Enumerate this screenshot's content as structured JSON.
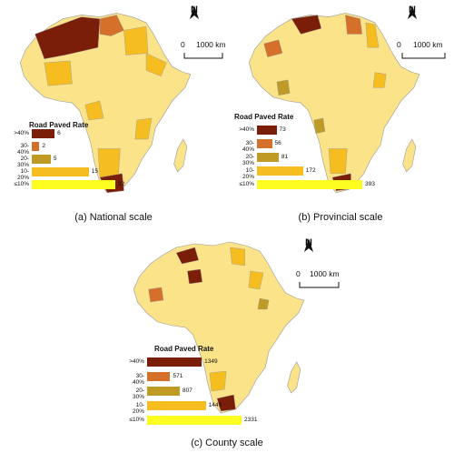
{
  "colors": {
    "c40": "#7a1e09",
    "c30": "#d4702a",
    "c20": "#bf9a25",
    "c10": "#f5bd1f",
    "c0": "#fdfd22",
    "base": "#fbe38a",
    "mid": "#f5c35a",
    "border": "#9a9a9a"
  },
  "north_symbol": "N",
  "scale_bar": {
    "zero": "0",
    "distance": "1000 km"
  },
  "panels": [
    {
      "id": "a",
      "caption": "(a) National scale",
      "legend_title": "Road Paved Rate",
      "rows": [
        {
          "label": ">40%",
          "count": "6"
        },
        {
          "label": "30-40%",
          "count": "2"
        },
        {
          "label": "20-30%",
          "count": "5"
        },
        {
          "label": "10-20%",
          "count": "15"
        },
        {
          "label": "≤10%",
          "count": "22"
        }
      ]
    },
    {
      "id": "b",
      "caption": "(b) Provincial scale",
      "legend_title": "Road Paved Rate",
      "rows": [
        {
          "label": ">40%",
          "count": "73"
        },
        {
          "label": "30-40%",
          "count": "56"
        },
        {
          "label": "20-30%",
          "count": "81"
        },
        {
          "label": "10-20%",
          "count": "172"
        },
        {
          "label": "≤10%",
          "count": "393"
        }
      ]
    },
    {
      "id": "c",
      "caption": "(c) County scale",
      "legend_title": "Road Paved Rate",
      "rows": [
        {
          "label": ">40%",
          "count": "1349"
        },
        {
          "label": "30-40%",
          "count": "571"
        },
        {
          "label": "20-30%",
          "count": "807"
        },
        {
          "label": "10-20%",
          "count": "1449"
        },
        {
          "label": "≤10%",
          "count": "2331"
        }
      ]
    }
  ]
}
